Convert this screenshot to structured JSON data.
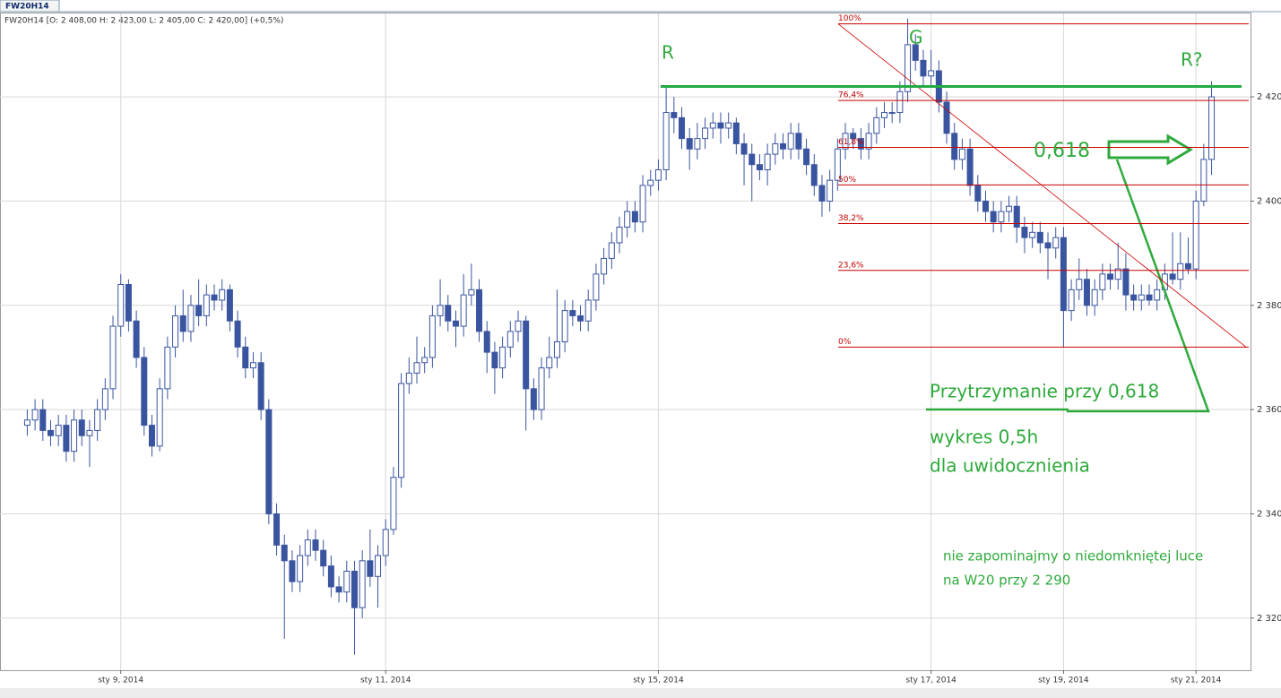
{
  "chart_data": {
    "type": "candlestick",
    "title": "FW20H14",
    "subtitle": "FW20H14 [O: 2 408,00  H: 2 423,00  L: 2 405,00  C: 2 420,00] (+0,5%)",
    "up_color": "#ffffff",
    "down_color": "#3a55a0",
    "edge_color": "#3a55a0",
    "grid": true,
    "ylim": [
      2310,
      2436
    ],
    "yticks": [
      {
        "value": 2320,
        "label": "2 320"
      },
      {
        "value": 2340,
        "label": "2 340"
      },
      {
        "value": 2360,
        "label": "2 360"
      },
      {
        "value": 2380,
        "label": "2 380"
      },
      {
        "value": 2400,
        "label": "2 400"
      },
      {
        "value": 2420,
        "label": "2 420"
      }
    ],
    "xlim": [
      -3.5,
      157
    ],
    "xticks": [
      {
        "value": 12,
        "label": "sty 9, 2014"
      },
      {
        "value": 46,
        "label": "sty 11, 2014"
      },
      {
        "value": 81,
        "label": "sty 15, 2014"
      },
      {
        "value": 116,
        "label": "sty 17, 2014"
      },
      {
        "value": 133,
        "label": "sty 19, 2014"
      },
      {
        "value": 150,
        "label": "sty 21, 2014"
      }
    ],
    "ohlc": [
      [
        2357,
        2360,
        2355,
        2358
      ],
      [
        2358,
        2362,
        2356,
        2360
      ],
      [
        2360,
        2362,
        2354,
        2356
      ],
      [
        2356,
        2358,
        2353,
        2355
      ],
      [
        2355,
        2359,
        2353,
        2357
      ],
      [
        2357,
        2359,
        2350,
        2352
      ],
      [
        2352,
        2360,
        2350,
        2358
      ],
      [
        2358,
        2360,
        2353,
        2355
      ],
      [
        2355,
        2358,
        2349,
        2356
      ],
      [
        2356,
        2362,
        2354,
        2360
      ],
      [
        2360,
        2366,
        2358,
        2364
      ],
      [
        2364,
        2378,
        2362,
        2376
      ],
      [
        2376,
        2386,
        2374,
        2384
      ],
      [
        2384,
        2385,
        2375,
        2377
      ],
      [
        2377,
        2379,
        2368,
        2370
      ],
      [
        2370,
        2372,
        2355,
        2357
      ],
      [
        2357,
        2359,
        2351,
        2353
      ],
      [
        2353,
        2366,
        2352,
        2364
      ],
      [
        2364,
        2374,
        2362,
        2372
      ],
      [
        2372,
        2380,
        2370,
        2378
      ],
      [
        2378,
        2383,
        2373,
        2375
      ],
      [
        2375,
        2382,
        2373,
        2380
      ],
      [
        2380,
        2385,
        2376,
        2378
      ],
      [
        2378,
        2384,
        2376,
        2382
      ],
      [
        2382,
        2384,
        2379,
        2381
      ],
      [
        2381,
        2385,
        2379,
        2383
      ],
      [
        2383,
        2384,
        2375,
        2377
      ],
      [
        2377,
        2379,
        2370,
        2372
      ],
      [
        2372,
        2374,
        2366,
        2368
      ],
      [
        2368,
        2371,
        2366,
        2369
      ],
      [
        2369,
        2371,
        2358,
        2360
      ],
      [
        2360,
        2362,
        2338,
        2340
      ],
      [
        2340,
        2342,
        2332,
        2334
      ],
      [
        2334,
        2336,
        2316,
        2331
      ],
      [
        2331,
        2333,
        2325,
        2327
      ],
      [
        2327,
        2334,
        2325,
        2332
      ],
      [
        2332,
        2337,
        2330,
        2335
      ],
      [
        2335,
        2337,
        2331,
        2333
      ],
      [
        2333,
        2335,
        2328,
        2330
      ],
      [
        2330,
        2332,
        2324,
        2326
      ],
      [
        2326,
        2328,
        2323,
        2325
      ],
      [
        2325,
        2331,
        2323,
        2329
      ],
      [
        2329,
        2331,
        2313,
        2322
      ],
      [
        2322,
        2333,
        2320,
        2331
      ],
      [
        2331,
        2337,
        2326,
        2328
      ],
      [
        2328,
        2334,
        2322,
        2332
      ],
      [
        2332,
        2339,
        2330,
        2337
      ],
      [
        2337,
        2349,
        2336,
        2347
      ],
      [
        2347,
        2367,
        2345,
        2365
      ],
      [
        2365,
        2370,
        2363,
        2367
      ],
      [
        2367,
        2374,
        2365,
        2369
      ],
      [
        2369,
        2372,
        2367,
        2370
      ],
      [
        2370,
        2380,
        2368,
        2378
      ],
      [
        2378,
        2385,
        2376,
        2380
      ],
      [
        2380,
        2382,
        2375,
        2377
      ],
      [
        2377,
        2379,
        2372,
        2376
      ],
      [
        2376,
        2386,
        2374,
        2382
      ],
      [
        2382,
        2388,
        2380,
        2383
      ],
      [
        2383,
        2385,
        2373,
        2375
      ],
      [
        2375,
        2377,
        2367,
        2371
      ],
      [
        2371,
        2373,
        2363,
        2368
      ],
      [
        2368,
        2374,
        2366,
        2372
      ],
      [
        2372,
        2377,
        2370,
        2375
      ],
      [
        2375,
        2379,
        2373,
        2377
      ],
      [
        2377,
        2378,
        2356,
        2364
      ],
      [
        2364,
        2366,
        2358,
        2360
      ],
      [
        2360,
        2370,
        2358,
        2368
      ],
      [
        2368,
        2374,
        2366,
        2370
      ],
      [
        2370,
        2383,
        2368,
        2373
      ],
      [
        2373,
        2381,
        2371,
        2379
      ],
      [
        2379,
        2381,
        2376,
        2378
      ],
      [
        2378,
        2380,
        2375,
        2377
      ],
      [
        2377,
        2383,
        2375,
        2381
      ],
      [
        2381,
        2388,
        2379,
        2386
      ],
      [
        2386,
        2391,
        2384,
        2389
      ],
      [
        2389,
        2394,
        2387,
        2392
      ],
      [
        2392,
        2397,
        2390,
        2395
      ],
      [
        2395,
        2400,
        2393,
        2398
      ],
      [
        2398,
        2400,
        2394,
        2396
      ],
      [
        2396,
        2405,
        2394,
        2403
      ],
      [
        2403,
        2406,
        2401,
        2404
      ],
      [
        2404,
        2408,
        2402,
        2406
      ],
      [
        2406,
        2422,
        2404,
        2417
      ],
      [
        2417,
        2420,
        2413,
        2416
      ],
      [
        2416,
        2418,
        2410,
        2412
      ],
      [
        2412,
        2414,
        2406,
        2410
      ],
      [
        2410,
        2415,
        2408,
        2412
      ],
      [
        2412,
        2416,
        2410,
        2414
      ],
      [
        2414,
        2417,
        2412,
        2415
      ],
      [
        2415,
        2417,
        2411,
        2414
      ],
      [
        2414,
        2417,
        2412,
        2415
      ],
      [
        2415,
        2416,
        2409,
        2411
      ],
      [
        2411,
        2413,
        2403,
        2409
      ],
      [
        2409,
        2411,
        2400,
        2407
      ],
      [
        2407,
        2409,
        2404,
        2406
      ],
      [
        2406,
        2411,
        2403,
        2409
      ],
      [
        2409,
        2413,
        2407,
        2411
      ],
      [
        2411,
        2413,
        2408,
        2410
      ],
      [
        2410,
        2415,
        2408,
        2413
      ],
      [
        2413,
        2415,
        2408,
        2410
      ],
      [
        2410,
        2412,
        2405,
        2407
      ],
      [
        2407,
        2409,
        2401,
        2403
      ],
      [
        2403,
        2405,
        2397,
        2400
      ],
      [
        2400,
        2406,
        2398,
        2404
      ],
      [
        2404,
        2412,
        2402,
        2410
      ],
      [
        2410,
        2415,
        2408,
        2413
      ],
      [
        2413,
        2414,
        2410,
        2412
      ],
      [
        2412,
        2414,
        2408,
        2410
      ],
      [
        2410,
        2415,
        2408,
        2413
      ],
      [
        2413,
        2418,
        2411,
        2416
      ],
      [
        2416,
        2419,
        2414,
        2417
      ],
      [
        2417,
        2419,
        2415,
        2417
      ],
      [
        2417,
        2423,
        2415,
        2421
      ],
      [
        2421,
        2435,
        2419,
        2430
      ],
      [
        2430,
        2432,
        2425,
        2427
      ],
      [
        2427,
        2429,
        2422,
        2424
      ],
      [
        2424,
        2429,
        2422,
        2425
      ],
      [
        2425,
        2427,
        2417,
        2419
      ],
      [
        2419,
        2421,
        2411,
        2413
      ],
      [
        2413,
        2415,
        2406,
        2408
      ],
      [
        2408,
        2412,
        2406,
        2410
      ],
      [
        2410,
        2412,
        2401,
        2403
      ],
      [
        2403,
        2405,
        2398,
        2400
      ],
      [
        2400,
        2402,
        2396,
        2398
      ],
      [
        2398,
        2400,
        2394,
        2396
      ],
      [
        2396,
        2400,
        2394,
        2398
      ],
      [
        2398,
        2401,
        2396,
        2399
      ],
      [
        2399,
        2401,
        2392,
        2395
      ],
      [
        2395,
        2397,
        2390,
        2393
      ],
      [
        2393,
        2396,
        2391,
        2394
      ],
      [
        2394,
        2396,
        2390,
        2392
      ],
      [
        2392,
        2394,
        2385,
        2391
      ],
      [
        2391,
        2395,
        2389,
        2393
      ],
      [
        2393,
        2395,
        2372,
        2379
      ],
      [
        2379,
        2385,
        2377,
        2383
      ],
      [
        2383,
        2389,
        2381,
        2385
      ],
      [
        2385,
        2387,
        2378,
        2380
      ],
      [
        2380,
        2385,
        2378,
        2383
      ],
      [
        2383,
        2388,
        2381,
        2386
      ],
      [
        2386,
        2388,
        2383,
        2385
      ],
      [
        2385,
        2392,
        2383,
        2387
      ],
      [
        2387,
        2390,
        2379,
        2382
      ],
      [
        2382,
        2384,
        2379,
        2381
      ],
      [
        2381,
        2384,
        2379,
        2382
      ],
      [
        2382,
        2384,
        2380,
        2381
      ],
      [
        2381,
        2385,
        2379,
        2383
      ],
      [
        2383,
        2388,
        2381,
        2386
      ],
      [
        2386,
        2394,
        2384,
        2385
      ],
      [
        2385,
        2394,
        2383,
        2388
      ],
      [
        2388,
        2393,
        2386,
        2387
      ],
      [
        2387,
        2402,
        2385,
        2400
      ],
      [
        2400,
        2411,
        2399,
        2408
      ],
      [
        2408,
        2423,
        2405,
        2420
      ]
    ],
    "fib_color": "#cc0000",
    "fib_levels": [
      {
        "value": 2434,
        "label": "100%"
      },
      {
        "value": 2419.3,
        "label": "76,4%"
      },
      {
        "value": 2410.3,
        "label": "61,8%"
      },
      {
        "value": 2403.1,
        "label": "50%"
      },
      {
        "value": 2395.7,
        "label": "38,2%"
      },
      {
        "value": 2386.7,
        "label": "23,6%"
      },
      {
        "value": 2372,
        "label": "0%"
      }
    ],
    "level_lines": [
      {
        "value": 2422,
        "color": "#22aa44"
      }
    ],
    "annotations": [
      "R",
      "G",
      "R?",
      "0,618",
      "Przytrzymanie przy 0,618",
      "wykres 0,5h",
      "dla uwidocznienia",
      "nie zapominajmy o niedomkniętej luce",
      "na W20 przy 2 290"
    ]
  }
}
